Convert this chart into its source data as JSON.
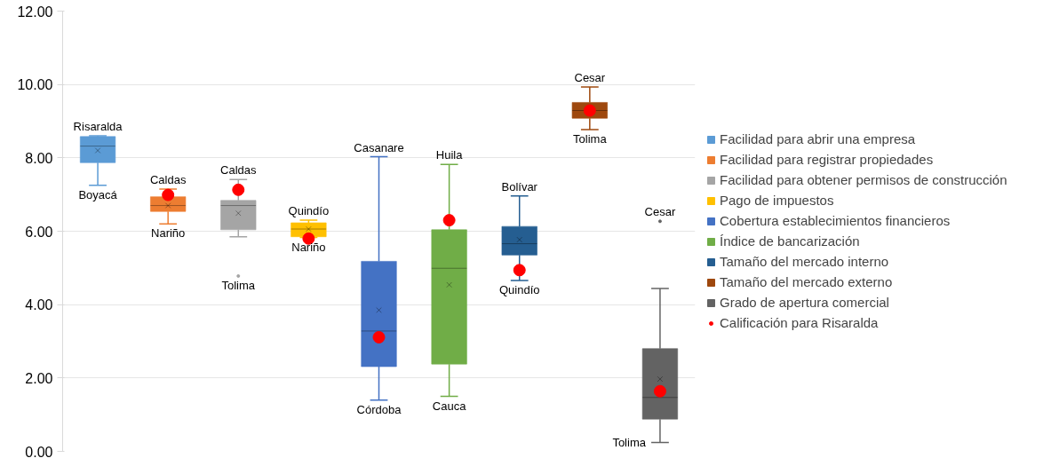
{
  "chart_data": {
    "type": "box",
    "categories": [
      null,
      null,
      null,
      null,
      null,
      null,
      null,
      null,
      null
    ],
    "ylim": [
      0,
      12
    ],
    "yticks": [
      {
        "value": 0,
        "label": "0.00"
      },
      {
        "value": 2,
        "label": "2.00"
      },
      {
        "value": 4,
        "label": "4.00"
      },
      {
        "value": 6,
        "label": "6.00"
      },
      {
        "value": 8,
        "label": "8.00"
      },
      {
        "value": 10,
        "label": "10.00"
      },
      {
        "value": 12,
        "label": "12.00"
      }
    ],
    "grid": "y",
    "legend": "right",
    "tick_labels": "y",
    "series": [
      {
        "name": "Facilidad para abrir una empresa",
        "color": "#5b9bd5",
        "boxes": [
          {
            "low": 7.25,
            "q1": 7.87,
            "median": 8.32,
            "q3": 8.58,
            "high": 8.6,
            "mean": 8.2
          },
          null,
          null,
          null,
          null,
          null,
          null,
          null,
          null
        ]
      },
      {
        "name": "Facilidad para registrar propiedades",
        "color": "#ed7d31",
        "boxes": [
          null,
          {
            "low": 6.2,
            "q1": 6.54,
            "median": 6.7,
            "q3": 6.94,
            "high": 7.15,
            "mean": 6.7
          },
          null,
          null,
          null,
          null,
          null,
          null,
          null
        ]
      },
      {
        "name": "Facilidad para obtener permisos de construcción",
        "color": "#a5a5a5",
        "boxes": [
          null,
          null,
          {
            "low": 5.85,
            "q1": 6.04,
            "median": 6.7,
            "q3": 6.84,
            "high": 7.41,
            "mean": 6.49,
            "outliers": [
              4.78
            ]
          },
          null,
          null,
          null,
          null,
          null,
          null
        ]
      },
      {
        "name": "Pago de impuestos",
        "color": "#ffc000",
        "boxes": [
          null,
          null,
          null,
          {
            "low": 5.83,
            "q1": 5.85,
            "median": 6.06,
            "q3": 6.23,
            "high": 6.3,
            "mean": 6.06
          },
          null,
          null,
          null,
          null,
          null
        ]
      },
      {
        "name": "Cobertura establecimientos financieros",
        "color": "#4472c4",
        "boxes": [
          null,
          null,
          null,
          null,
          {
            "low": 1.4,
            "q1": 2.31,
            "median": 3.28,
            "q3": 5.18,
            "high": 8.03,
            "mean": 3.85
          },
          null,
          null,
          null,
          null
        ]
      },
      {
        "name": "Índice de bancarización",
        "color": "#70ad47",
        "boxes": [
          null,
          null,
          null,
          null,
          null,
          {
            "low": 1.5,
            "q1": 2.38,
            "median": 4.99,
            "q3": 6.04,
            "high": 7.82,
            "mean": 4.54
          },
          null,
          null,
          null
        ]
      },
      {
        "name": "Tamaño del mercado interno",
        "color": "#255e91",
        "boxes": [
          null,
          null,
          null,
          null,
          null,
          null,
          {
            "low": 4.66,
            "q1": 5.35,
            "median": 5.66,
            "q3": 6.13,
            "high": 6.96,
            "mean": 5.77
          },
          null,
          null
        ]
      },
      {
        "name": "Tamaño del mercado externo",
        "color": "#9e480e",
        "boxes": [
          null,
          null,
          null,
          null,
          null,
          null,
          null,
          {
            "low": 8.77,
            "q1": 9.08,
            "median": 9.29,
            "q3": 9.51,
            "high": 9.93
          },
          null
        ]
      },
      {
        "name": "Grado de apertura comercial",
        "color": "#636363",
        "boxes": [
          null,
          null,
          null,
          null,
          null,
          null,
          null,
          null,
          {
            "low": 0.24,
            "q1": 0.88,
            "median": 1.47,
            "q3": 2.8,
            "high": 4.44,
            "mean": 1.97,
            "outliers": [
              6.27
            ]
          }
        ]
      },
      {
        "name": "Calificación para Risaralda",
        "type": "scatter",
        "marker": "circle",
        "color": "#ff0000",
        "values": [
          null,
          6.99,
          7.13,
          5.8,
          3.11,
          6.3,
          4.94,
          9.29,
          1.64
        ]
      }
    ],
    "annotations": [
      "Risaralda",
      "Boyacá",
      "Caldas",
      "Nariño",
      "Caldas",
      "Tolima",
      "Quindío",
      "Nariño",
      "Casanare",
      "Córdoba",
      "Huila",
      "Cauca",
      "Bolívar",
      "Quindío",
      "Cesar",
      "Tolima",
      "Cesar",
      "Tolima"
    ]
  }
}
